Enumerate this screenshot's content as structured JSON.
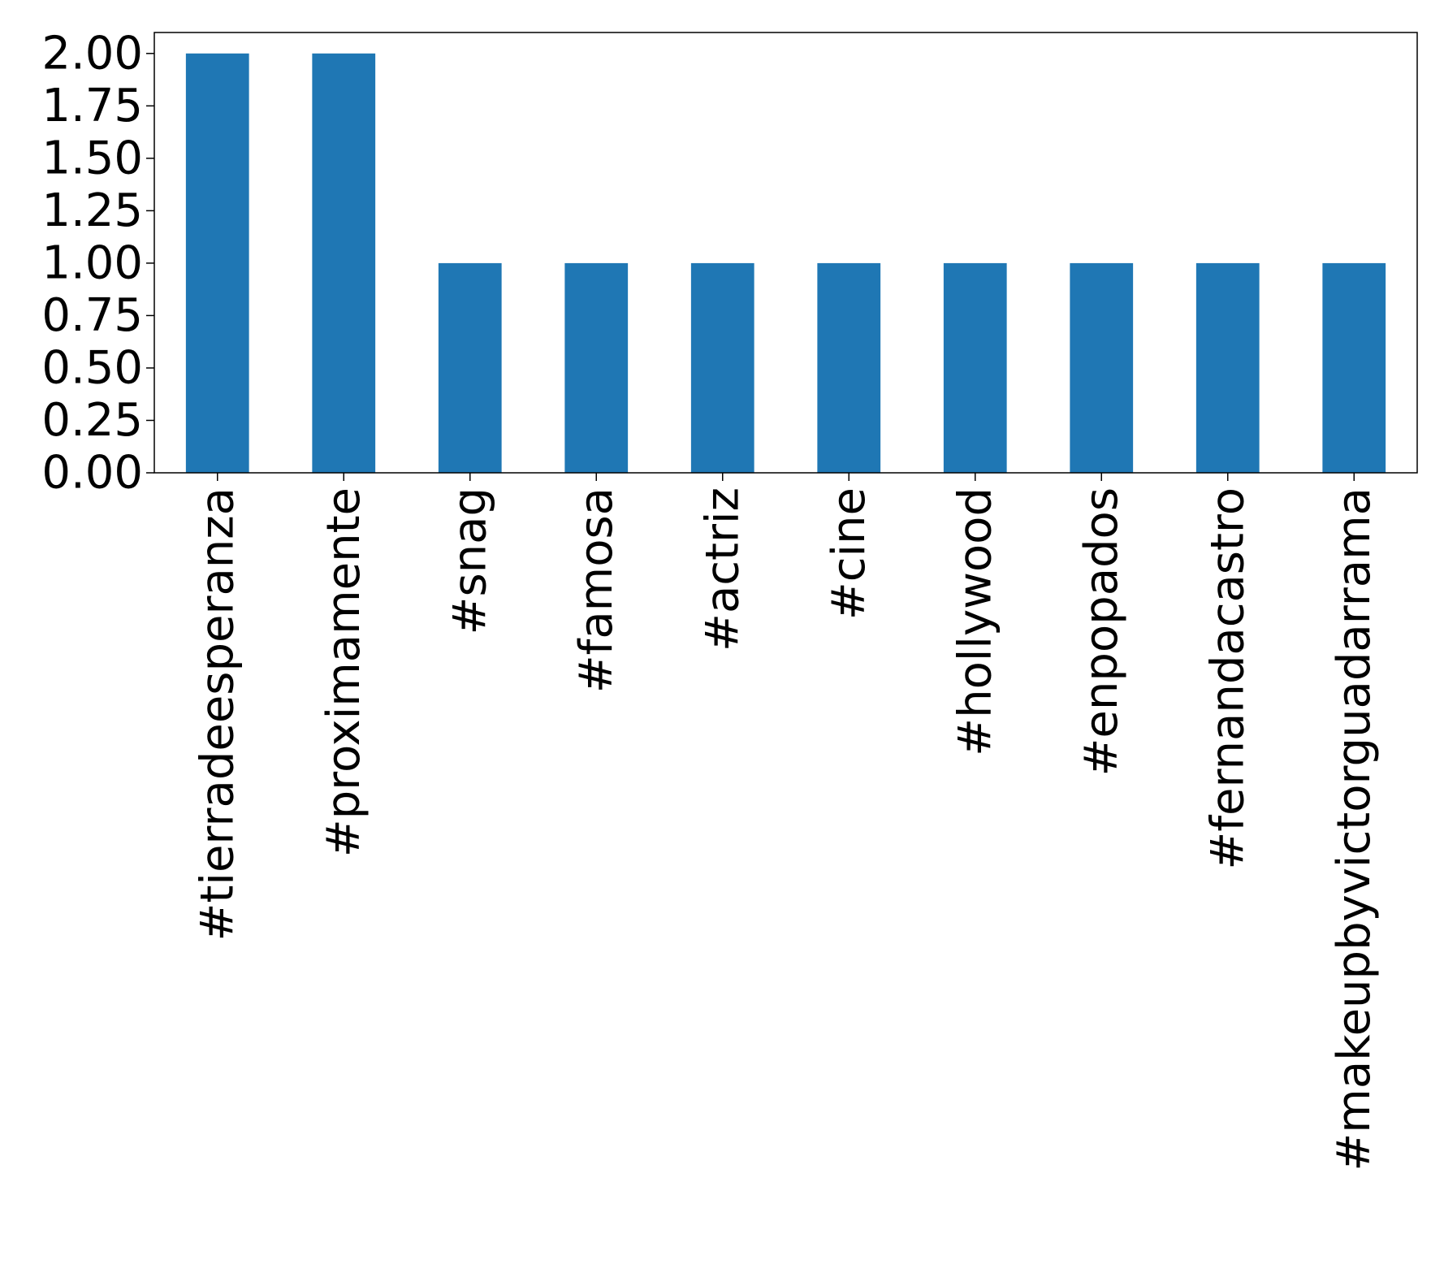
{
  "chart_data": {
    "type": "bar",
    "title": "",
    "xlabel": "",
    "ylabel": "",
    "categories": [
      "#tierradeesperanza",
      "#proximamente",
      "#snag",
      "#famosa",
      "#actriz",
      "#cine",
      "#hollywood",
      "#enpopados",
      "#fernandacastro",
      "#makeupbyvictorguadarrama"
    ],
    "values": [
      2,
      2,
      1,
      1,
      1,
      1,
      1,
      1,
      1,
      1
    ],
    "ylim": [
      0,
      2.1
    ],
    "yticks": [
      0.0,
      0.25,
      0.5,
      0.75,
      1.0,
      1.25,
      1.5,
      1.75,
      2.0
    ],
    "ytick_labels": [
      "0.00",
      "0.25",
      "0.50",
      "0.75",
      "1.00",
      "1.25",
      "1.50",
      "1.75",
      "2.00"
    ],
    "bar_color": "#1f77b4",
    "grid": false,
    "legend": false
  }
}
